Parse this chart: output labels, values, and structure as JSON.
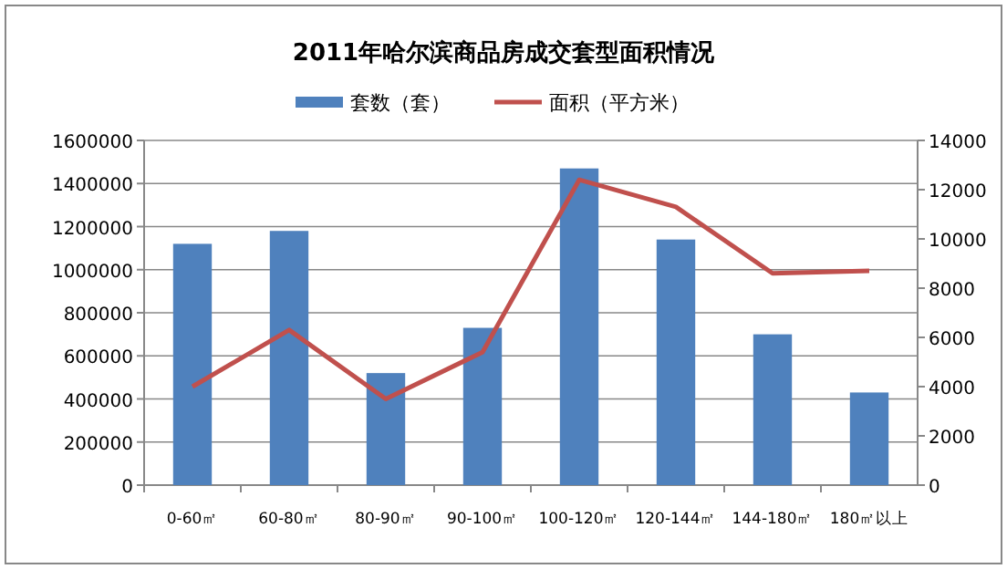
{
  "chart_data": {
    "type": "bar",
    "title": "2011年哈尔滨商品房成交套型面积情况",
    "categories": [
      "0-60㎡",
      "60-80㎡",
      "80-90㎡",
      "90-100㎡",
      "100-120㎡",
      "120-144㎡",
      "144-180㎡",
      "180㎡以上"
    ],
    "series": [
      {
        "name": "套数（套）",
        "color": "#4f81bd",
        "values": [
          1120000,
          1180000,
          520000,
          730000,
          1470000,
          1140000,
          700000,
          430000
        ]
      },
      {
        "name": "面积（平方米）",
        "type": "line",
        "axis": "y2",
        "color": "#c0504d",
        "values": [
          4000,
          6300,
          3500,
          5400,
          12400,
          11300,
          8600,
          8700
        ]
      }
    ],
    "ylim": [
      0,
      1600000
    ],
    "yticks": [
      0,
      200000,
      400000,
      600000,
      800000,
      1000000,
      1200000,
      1400000,
      1600000
    ],
    "y2lim": [
      0,
      14000
    ],
    "y2ticks": [
      0,
      2000,
      4000,
      6000,
      8000,
      10000,
      12000,
      14000
    ],
    "grid": "y",
    "legend": "top",
    "marker": "none"
  }
}
